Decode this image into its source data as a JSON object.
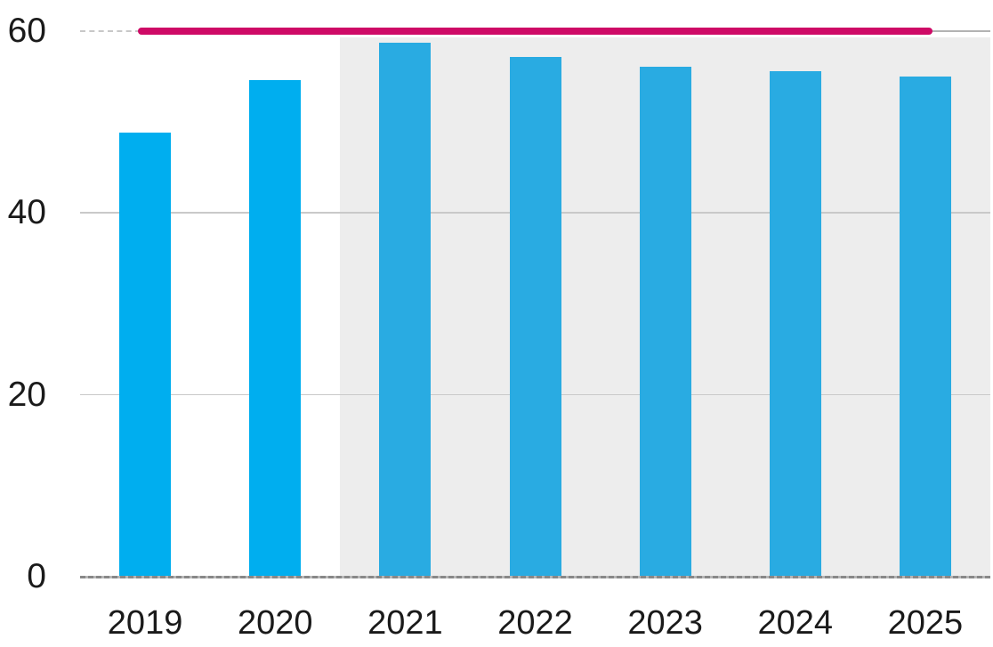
{
  "chart_data": {
    "type": "bar",
    "title": "",
    "xlabel": "",
    "ylabel": "",
    "categories": [
      "2019",
      "2020",
      "2021",
      "2022",
      "2023",
      "2024",
      "2025"
    ],
    "values": [
      48.8,
      54.6,
      58.7,
      57.2,
      56.1,
      55.6,
      55.0
    ],
    "ylim": [
      0,
      60
    ],
    "yticks": [
      0,
      20,
      40,
      60
    ],
    "grid": "horizontal",
    "legend": "none",
    "forecast_from_category": "2021",
    "forecast_shading_color": "#EDEDED",
    "bar_color_historical": "#00AEEF",
    "bar_color_forecast": "#29ABE2",
    "target_line": {
      "value": 60,
      "color": "#CE0A66",
      "spans_categories": [
        "2019",
        "2025"
      ]
    }
  },
  "colors": {
    "background": "#FFFFFF",
    "gridline": "#C9C9C9",
    "axis_line": "#8C8C8C",
    "text": "#1A1A1A"
  }
}
